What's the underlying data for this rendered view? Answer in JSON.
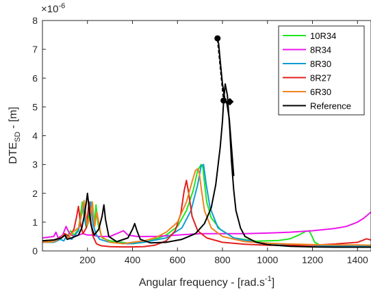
{
  "chart_data": {
    "type": "line",
    "xlabel_main": "Angular frequency - [rad.s",
    "xlabel_sup": "-1",
    "xlabel_end": "]",
    "ylabel_main": "DTE",
    "ylabel_sub": "SD",
    "ylabel_end": " - [m]",
    "y_exponent_base": "×10",
    "y_exponent_sup": "-6",
    "xlim": [
      0,
      1460
    ],
    "ylim": [
      0,
      8
    ],
    "xticks": [
      {
        "value": 200,
        "label": "200"
      },
      {
        "value": 400,
        "label": "400"
      },
      {
        "value": 600,
        "label": "600"
      },
      {
        "value": 800,
        "label": "800"
      },
      {
        "value": 1000,
        "label": "1000"
      },
      {
        "value": 1200,
        "label": "1200"
      },
      {
        "value": 1400,
        "label": "1400"
      }
    ],
    "yticks": [
      {
        "value": 0,
        "label": "0"
      },
      {
        "value": 1,
        "label": "1"
      },
      {
        "value": 2,
        "label": "2"
      },
      {
        "value": 3,
        "label": "3"
      },
      {
        "value": 4,
        "label": "4"
      },
      {
        "value": 5,
        "label": "5"
      },
      {
        "value": 6,
        "label": "6"
      },
      {
        "value": 7,
        "label": "7"
      },
      {
        "value": 8,
        "label": "8"
      }
    ],
    "grid": false,
    "legend_position": "top-right",
    "series": [
      {
        "name": "10R34",
        "color": "#1fe61f",
        "x": [
          0,
          50,
          70,
          85,
          95,
          110,
          125,
          140,
          160,
          170,
          177,
          185,
          195,
          205,
          212,
          220,
          230,
          238,
          248,
          265,
          300,
          350,
          400,
          450,
          500,
          550,
          600,
          640,
          670,
          690,
          705,
          713,
          718,
          730,
          750,
          790,
          850,
          950,
          1050,
          1100,
          1140,
          1170,
          1185,
          1195,
          1210,
          1240,
          1300,
          1400,
          1460
        ],
        "y": [
          0.3,
          0.32,
          0.38,
          0.45,
          0.6,
          0.5,
          0.7,
          0.55,
          0.75,
          1.3,
          1.7,
          1.2,
          0.8,
          1.0,
          1.7,
          1.2,
          0.8,
          1.6,
          0.9,
          0.45,
          0.35,
          0.3,
          0.25,
          0.3,
          0.4,
          0.55,
          0.85,
          1.4,
          2.1,
          2.8,
          3.0,
          2.9,
          2.5,
          1.7,
          1.15,
          0.75,
          0.45,
          0.34,
          0.36,
          0.42,
          0.55,
          0.68,
          0.7,
          0.55,
          0.3,
          0.17,
          0.14,
          0.16,
          0.18
        ]
      },
      {
        "name": "8R34",
        "color": "#ec14ec",
        "x": [
          0,
          50,
          60,
          70,
          90,
          105,
          120,
          140,
          160,
          180,
          200,
          220,
          250,
          300,
          360,
          380,
          420,
          500,
          600,
          700,
          800,
          900,
          1000,
          1100,
          1200,
          1300,
          1350,
          1400,
          1430,
          1460
        ],
        "y": [
          0.45,
          0.5,
          0.65,
          0.45,
          0.55,
          0.85,
          0.6,
          0.5,
          0.55,
          0.6,
          0.55,
          0.55,
          0.5,
          0.5,
          0.7,
          0.55,
          0.5,
          0.5,
          0.55,
          0.6,
          0.6,
          0.6,
          0.62,
          0.65,
          0.7,
          0.78,
          0.85,
          1.0,
          1.15,
          1.35
        ]
      },
      {
        "name": "8R30",
        "color": "#0f9bd6",
        "x": [
          0,
          50,
          80,
          95,
          110,
          130,
          160,
          170,
          182,
          192,
          205,
          215,
          225,
          240,
          255,
          300,
          380,
          450,
          550,
          620,
          660,
          690,
          705,
          716,
          728,
          745,
          780,
          850,
          950,
          1100,
          1250,
          1400,
          1460
        ],
        "y": [
          0.3,
          0.3,
          0.4,
          0.35,
          0.55,
          0.4,
          0.7,
          1.1,
          1.6,
          0.9,
          1.3,
          1.7,
          0.9,
          0.55,
          0.4,
          0.3,
          0.25,
          0.3,
          0.45,
          0.8,
          1.4,
          2.3,
          2.95,
          3.0,
          2.3,
          1.5,
          0.8,
          0.45,
          0.3,
          0.22,
          0.18,
          0.16,
          0.15
        ]
      },
      {
        "name": "8R27",
        "color": "#e31d1d",
        "x": [
          0,
          50,
          80,
          100,
          120,
          140,
          152,
          160,
          170,
          180,
          195,
          207,
          215,
          225,
          240,
          260,
          300,
          350,
          400,
          450,
          500,
          550,
          590,
          615,
          630,
          640,
          650,
          665,
          690,
          730,
          800,
          900,
          1000,
          1100,
          1200,
          1300,
          1400,
          1440,
          1460
        ],
        "y": [
          0.35,
          0.38,
          0.45,
          0.6,
          0.5,
          0.75,
          1.2,
          1.55,
          0.9,
          0.6,
          0.8,
          1.7,
          1.0,
          0.5,
          0.25,
          0.18,
          0.15,
          0.14,
          0.14,
          0.15,
          0.2,
          0.35,
          0.7,
          1.3,
          2.1,
          2.45,
          2.0,
          1.2,
          0.7,
          0.45,
          0.3,
          0.23,
          0.2,
          0.19,
          0.2,
          0.24,
          0.3,
          0.42,
          0.38
        ]
      },
      {
        "name": "6R30",
        "color": "#f0821e",
        "x": [
          0,
          50,
          80,
          95,
          115,
          135,
          160,
          175,
          185,
          198,
          212,
          222,
          232,
          242,
          250,
          262,
          300,
          360,
          400,
          450,
          500,
          550,
          600,
          640,
          665,
          680,
          690,
          697,
          707,
          720,
          750,
          800,
          900,
          1000,
          1100,
          1200,
          1300,
          1400,
          1460
        ],
        "y": [
          0.3,
          0.32,
          0.45,
          0.55,
          0.45,
          0.65,
          0.8,
          1.3,
          1.75,
          0.9,
          1.15,
          1.7,
          0.85,
          1.35,
          1.0,
          0.5,
          0.3,
          0.25,
          0.3,
          0.35,
          0.45,
          0.65,
          1.0,
          1.7,
          2.4,
          2.8,
          2.85,
          2.7,
          2.1,
          1.4,
          0.8,
          0.5,
          0.32,
          0.27,
          0.24,
          0.22,
          0.21,
          0.21,
          0.2
        ]
      },
      {
        "name": "Reference",
        "color": "#000000",
        "x": [
          0,
          50,
          85,
          100,
          110,
          130,
          160,
          175,
          188,
          200,
          208,
          216,
          230,
          250,
          265,
          273,
          280,
          295,
          330,
          380,
          400,
          410,
          420,
          435,
          480,
          550,
          620,
          680,
          720,
          750,
          770,
          790,
          800,
          805,
          812,
          822,
          832,
          840,
          850,
          860,
          880,
          900,
          950,
          1000,
          1100,
          1200,
          1300,
          1400,
          1460
        ],
        "y": [
          0.35,
          0.38,
          0.45,
          0.55,
          0.4,
          0.45,
          0.55,
          0.8,
          1.3,
          2.0,
          1.4,
          0.9,
          0.55,
          0.75,
          1.2,
          1.6,
          1.1,
          0.5,
          0.32,
          0.45,
          0.75,
          0.95,
          0.7,
          0.4,
          0.28,
          0.3,
          0.4,
          0.6,
          0.95,
          1.5,
          2.3,
          3.6,
          4.5,
          5.2,
          5.8,
          5.4,
          4.3,
          3.1,
          2.1,
          1.4,
          0.8,
          0.5,
          0.3,
          0.22,
          0.16,
          0.14,
          0.13,
          0.13,
          0.13
        ]
      }
    ],
    "reference_upper": {
      "color": "#000000",
      "x": [
        778,
        783,
        790,
        800,
        810,
        820,
        830,
        840,
        850
      ],
      "y": [
        7.35,
        7.2,
        6.6,
        5.8,
        5.3,
        5.1,
        4.6,
        3.6,
        2.6
      ]
    },
    "reference_dashed": {
      "color": "#000000",
      "x": [
        778,
        805
      ],
      "y": [
        7.35,
        5.22
      ]
    },
    "markers": [
      {
        "shape": "circle",
        "x": 778,
        "y": 7.38
      },
      {
        "shape": "circle",
        "x": 805,
        "y": 5.22
      },
      {
        "shape": "diamond",
        "x": 833,
        "y": 5.18
      }
    ]
  }
}
